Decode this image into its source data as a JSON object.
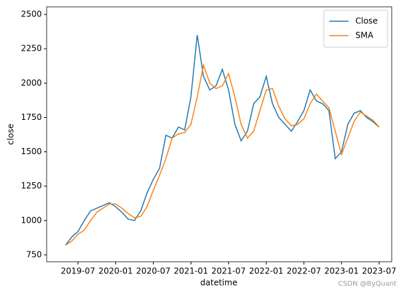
{
  "chart_data": {
    "type": "line",
    "x_label": "datetime",
    "y_label": "close",
    "x": [
      "2019-05",
      "2019-06",
      "2019-07",
      "2019-08",
      "2019-09",
      "2019-10",
      "2019-11",
      "2019-12",
      "2020-01",
      "2020-02",
      "2020-03",
      "2020-04",
      "2020-05",
      "2020-06",
      "2020-07",
      "2020-08",
      "2020-09",
      "2020-10",
      "2020-11",
      "2020-12",
      "2021-01",
      "2021-02",
      "2021-03",
      "2021-04",
      "2021-05",
      "2021-06",
      "2021-07",
      "2021-08",
      "2021-09",
      "2021-10",
      "2021-11",
      "2021-12",
      "2022-01",
      "2022-02",
      "2022-03",
      "2022-04",
      "2022-05",
      "2022-06",
      "2022-07",
      "2022-08",
      "2022-09",
      "2022-10",
      "2022-11",
      "2022-12",
      "2023-01",
      "2023-02",
      "2023-03",
      "2023-04",
      "2023-05",
      "2023-06",
      "2023-07"
    ],
    "series": [
      {
        "name": "Close",
        "color": "#1f77b4",
        "values": [
          820,
          880,
          920,
          1000,
          1070,
          1090,
          1110,
          1130,
          1100,
          1060,
          1010,
          1000,
          1070,
          1200,
          1300,
          1380,
          1620,
          1600,
          1680,
          1660,
          1900,
          2350,
          2050,
          1950,
          1980,
          2100,
          1950,
          1700,
          1580,
          1650,
          1850,
          1900,
          2050,
          1850,
          1750,
          1700,
          1650,
          1720,
          1800,
          1950,
          1870,
          1850,
          1800,
          1450,
          1500,
          1700,
          1780,
          1800,
          1750,
          1720,
          1680
        ]
      },
      {
        "name": "SMA",
        "color": "#ff7f0e",
        "values": [
          820,
          850,
          900,
          930,
          1000,
          1060,
          1090,
          1120,
          1120,
          1090,
          1050,
          1020,
          1030,
          1100,
          1220,
          1330,
          1450,
          1600,
          1630,
          1640,
          1700,
          1900,
          2130,
          2000,
          1960,
          1980,
          2070,
          1900,
          1700,
          1600,
          1650,
          1800,
          1950,
          1960,
          1830,
          1740,
          1690,
          1700,
          1740,
          1850,
          1920,
          1870,
          1820,
          1650,
          1480,
          1600,
          1720,
          1790,
          1760,
          1730,
          1680
        ]
      }
    ],
    "xlim": [
      "2019-02",
      "2023-09"
    ],
    "xticks": [
      "2019-07",
      "2020-01",
      "2020-07",
      "2021-01",
      "2021-07",
      "2022-01",
      "2022-07",
      "2023-01",
      "2023-07"
    ],
    "ylim": [
      700,
      2555
    ],
    "yticks": [
      750,
      1000,
      1250,
      1500,
      1750,
      2000,
      2250,
      2500
    ],
    "legend": "upper right",
    "watermark": "CSDN @ByQuant"
  }
}
